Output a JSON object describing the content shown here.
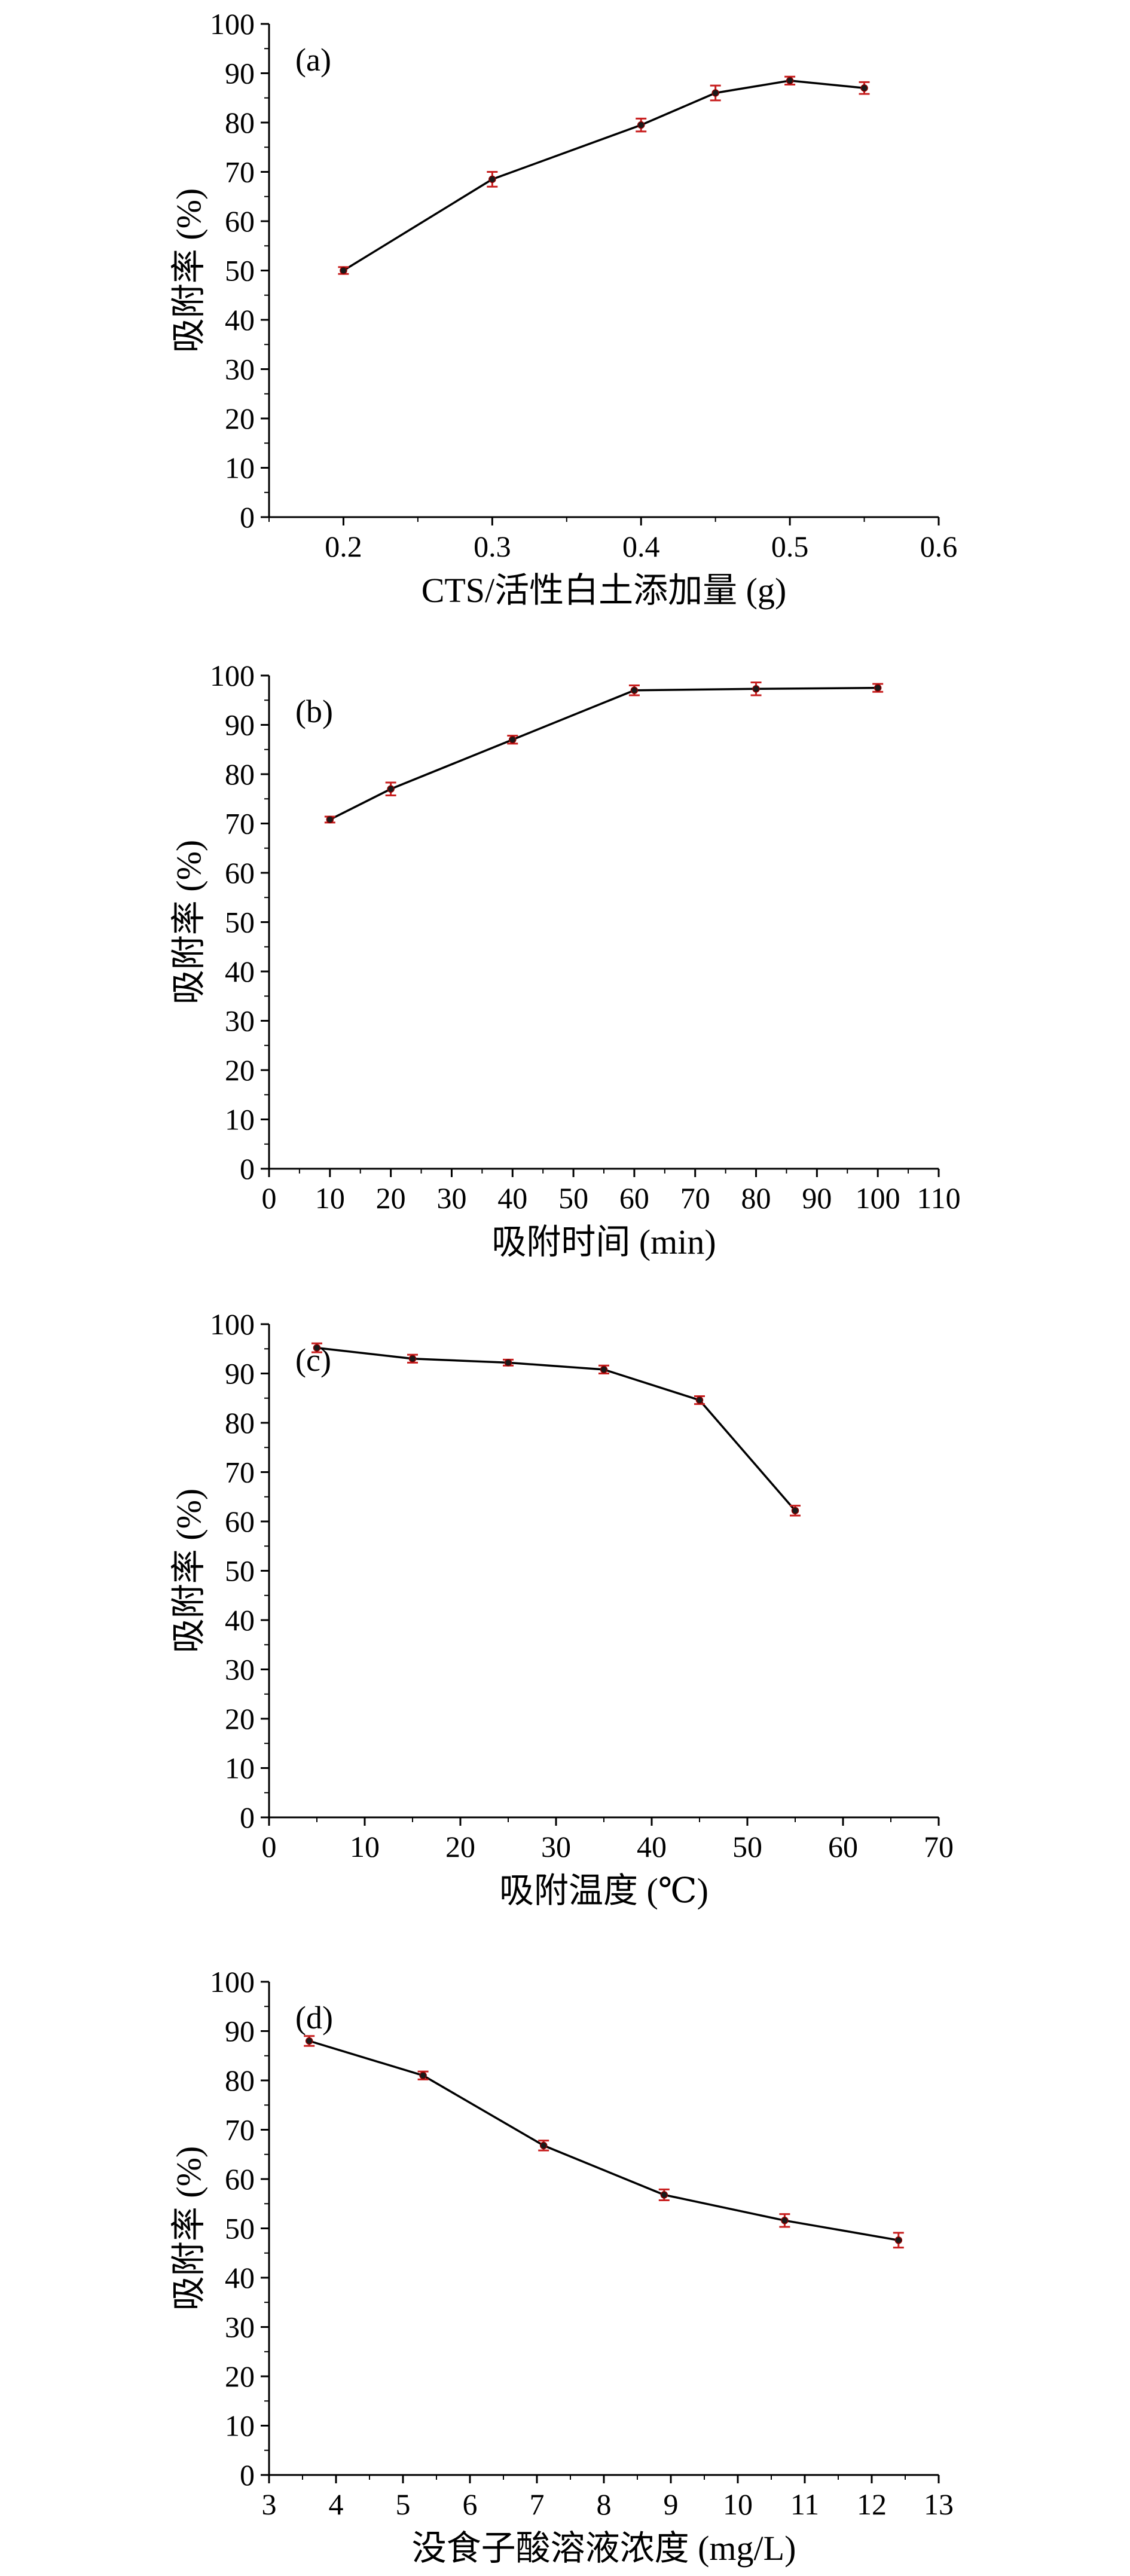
{
  "chart_data": [
    {
      "type": "line",
      "panel_label": "(a)",
      "xlabel": "CTS/活性白土添加量 (g)",
      "ylabel": "吸附率 (%)",
      "xlim": [
        0.15,
        0.6
      ],
      "ylim": [
        0,
        100
      ],
      "xticks": [
        0.2,
        0.3,
        0.4,
        0.5,
        0.6
      ],
      "xtick_labels": [
        "0.2",
        "0.3",
        "0.4",
        "0.5",
        "0.6"
      ],
      "yticks": [
        0,
        10,
        20,
        30,
        40,
        50,
        60,
        70,
        80,
        90,
        100
      ],
      "ytick_labels": [
        "0",
        "10",
        "20",
        "30",
        "40",
        "50",
        "60",
        "70",
        "80",
        "90",
        "100"
      ],
      "series": [
        {
          "x": [
            0.2,
            0.3,
            0.4,
            0.45,
            0.5,
            0.55
          ],
          "y": [
            50,
            68.5,
            79.5,
            86,
            88.5,
            87
          ],
          "err": [
            0.7,
            1.5,
            1.3,
            1.5,
            0.8,
            1.2
          ]
        }
      ]
    },
    {
      "type": "line",
      "panel_label": "(b)",
      "xlabel": "吸附时间 (min)",
      "ylabel": "吸附率 (%)",
      "xlim": [
        0,
        110
      ],
      "ylim": [
        0,
        100
      ],
      "xticks": [
        0,
        10,
        20,
        30,
        40,
        50,
        60,
        70,
        80,
        90,
        100,
        110
      ],
      "xtick_labels": [
        "0",
        "10",
        "20",
        "30",
        "40",
        "50",
        "60",
        "70",
        "80",
        "90",
        "100",
        "110"
      ],
      "yticks": [
        0,
        10,
        20,
        30,
        40,
        50,
        60,
        70,
        80,
        90,
        100
      ],
      "ytick_labels": [
        "0",
        "10",
        "20",
        "30",
        "40",
        "50",
        "60",
        "70",
        "80",
        "90",
        "100"
      ],
      "series": [
        {
          "x": [
            10,
            20,
            40,
            60,
            80,
            100
          ],
          "y": [
            70.8,
            77,
            87,
            97,
            97.3,
            97.5
          ],
          "err": [
            0.6,
            1.3,
            0.8,
            1.0,
            1.3,
            0.8
          ]
        }
      ]
    },
    {
      "type": "line",
      "panel_label": "(c)",
      "xlabel": "吸附温度 (℃)",
      "ylabel": "吸附率 (%)",
      "xlim": [
        0,
        70
      ],
      "ylim": [
        0,
        100
      ],
      "xticks": [
        0,
        10,
        20,
        30,
        40,
        50,
        60,
        70
      ],
      "xtick_labels": [
        "0",
        "10",
        "20",
        "30",
        "40",
        "50",
        "60",
        "70"
      ],
      "yticks": [
        0,
        10,
        20,
        30,
        40,
        50,
        60,
        70,
        80,
        90,
        100
      ],
      "ytick_labels": [
        "0",
        "10",
        "20",
        "30",
        "40",
        "50",
        "60",
        "70",
        "80",
        "90",
        "100"
      ],
      "series": [
        {
          "x": [
            5,
            15,
            25,
            35,
            45,
            55
          ],
          "y": [
            95.2,
            93,
            92.2,
            90.8,
            84.6,
            62.2
          ],
          "err": [
            0.9,
            0.8,
            0.6,
            0.8,
            0.8,
            1.0
          ]
        }
      ]
    },
    {
      "type": "line",
      "panel_label": "(d)",
      "xlabel": "没食子酸溶液浓度 (mg/L)",
      "ylabel": "吸附率 (%)",
      "xlim": [
        3,
        13
      ],
      "ylim": [
        0,
        100
      ],
      "xticks": [
        3,
        4,
        5,
        6,
        7,
        8,
        9,
        10,
        11,
        12,
        13
      ],
      "xtick_labels": [
        "3",
        "4",
        "5",
        "6",
        "7",
        "8",
        "9",
        "10",
        "11",
        "12",
        "13"
      ],
      "yticks": [
        0,
        10,
        20,
        30,
        40,
        50,
        60,
        70,
        80,
        90,
        100
      ],
      "ytick_labels": [
        "0",
        "10",
        "20",
        "30",
        "40",
        "50",
        "60",
        "70",
        "80",
        "90",
        "100"
      ],
      "series": [
        {
          "x": [
            3.6,
            5.3,
            7.1,
            8.9,
            10.7,
            12.4
          ],
          "y": [
            88,
            81,
            66.8,
            56.8,
            51.6,
            47.6
          ],
          "err": [
            1.0,
            0.8,
            1.0,
            1.1,
            1.3,
            1.5
          ]
        }
      ]
    }
  ]
}
